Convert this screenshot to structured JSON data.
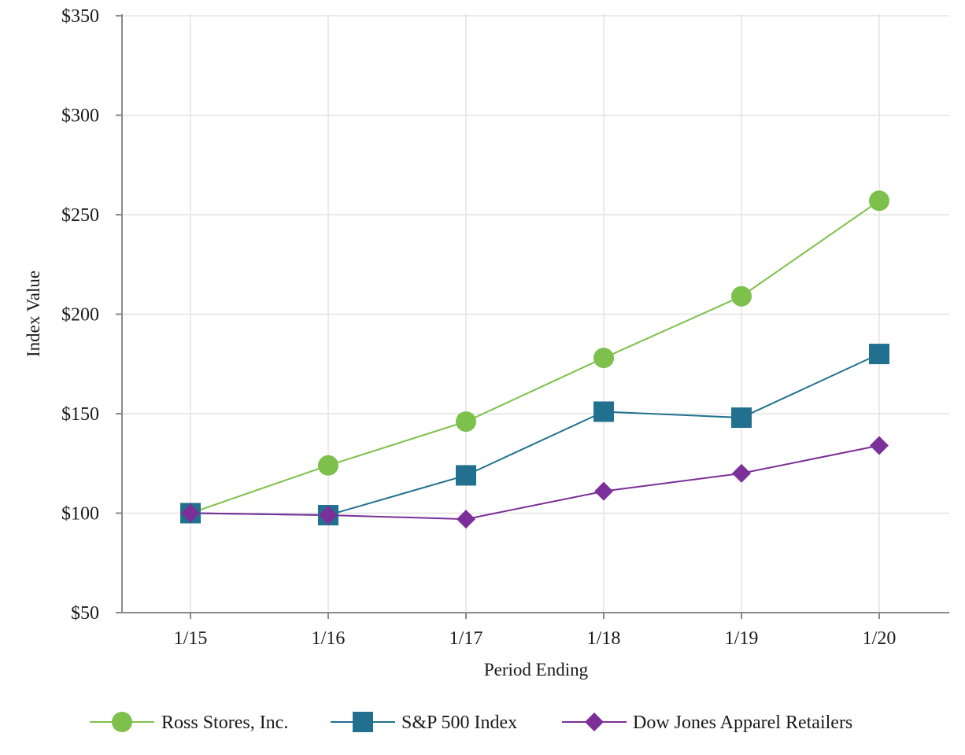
{
  "chart_data": {
    "type": "line",
    "categories": [
      "1/15",
      "1/16",
      "1/17",
      "1/18",
      "1/19",
      "1/20"
    ],
    "series": [
      {
        "name": "Ross Stores, Inc.",
        "color": "#7dc04b",
        "marker": "circle",
        "values": [
          100,
          124,
          146,
          178,
          209,
          257
        ]
      },
      {
        "name": "S&P 500 Index",
        "color": "#22708f",
        "marker": "square",
        "values": [
          100,
          99,
          119,
          151,
          148,
          180
        ]
      },
      {
        "name": "Dow Jones Apparel Retailers",
        "color": "#7b2f99",
        "marker": "diamond",
        "values": [
          100,
          99,
          97,
          111,
          120,
          134
        ]
      }
    ],
    "xlabel": "Period Ending",
    "ylabel": "Index Value",
    "ylim": [
      50,
      350
    ],
    "yticks": [
      50,
      100,
      150,
      200,
      250,
      300,
      350
    ],
    "ytick_labels": [
      "$50",
      "$100",
      "$150",
      "$200",
      "$250",
      "$300",
      "$350"
    ],
    "grid": true,
    "legend_position": "bottom"
  }
}
